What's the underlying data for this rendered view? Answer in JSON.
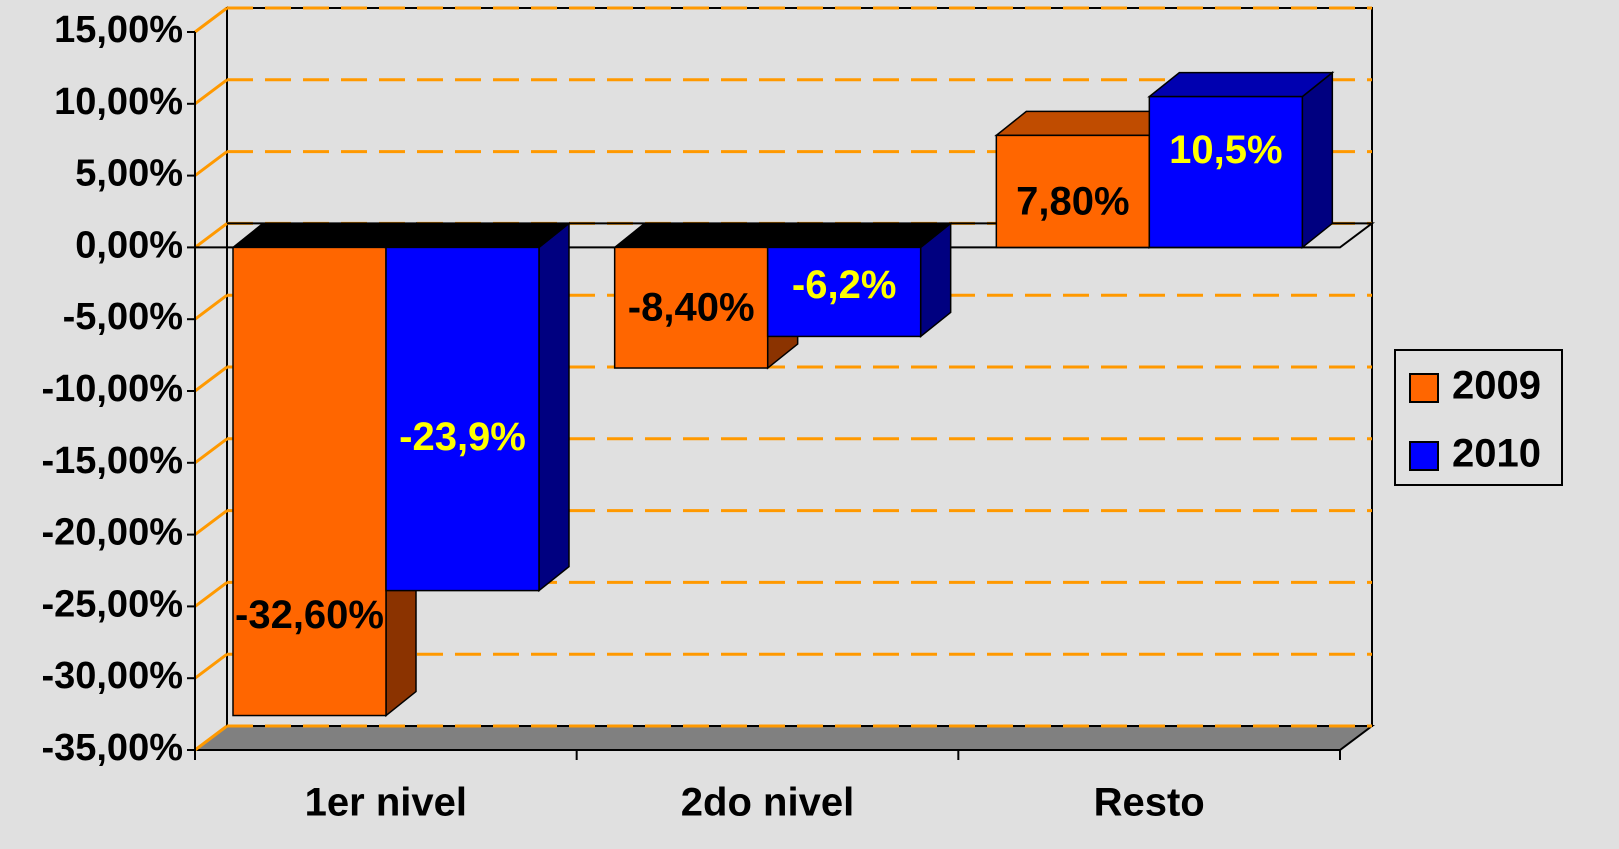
{
  "chart_data": {
    "type": "bar3d",
    "categories": [
      "1er nivel",
      "2do nivel",
      "Resto"
    ],
    "series": [
      {
        "name": "2009",
        "color": "#ff6600",
        "values": [
          -32.6,
          -8.4,
          7.8
        ],
        "value_labels": [
          "-32,60%",
          "-8,40%",
          "7,80%"
        ]
      },
      {
        "name": "2010",
        "color": "#0000ff",
        "values": [
          -23.9,
          -6.2,
          10.5
        ],
        "value_labels": [
          "-23,9%",
          "-6,2%",
          "10,5%"
        ]
      }
    ],
    "ylim": [
      -35,
      15
    ],
    "yticks": [
      {
        "value": 15,
        "label": "15,00%"
      },
      {
        "value": 10,
        "label": "10,00%"
      },
      {
        "value": 5,
        "label": "5,00%"
      },
      {
        "value": 0,
        "label": "0,00%"
      },
      {
        "value": -5,
        "label": "-5,00%"
      },
      {
        "value": -10,
        "label": "-10,00%"
      },
      {
        "value": -15,
        "label": "-15,00%"
      },
      {
        "value": -20,
        "label": "-20,00%"
      },
      {
        "value": -25,
        "label": "-25,00%"
      },
      {
        "value": -30,
        "label": "-30,00%"
      },
      {
        "value": -35,
        "label": "-35,00%"
      }
    ],
    "grid": true,
    "legend": "right"
  }
}
